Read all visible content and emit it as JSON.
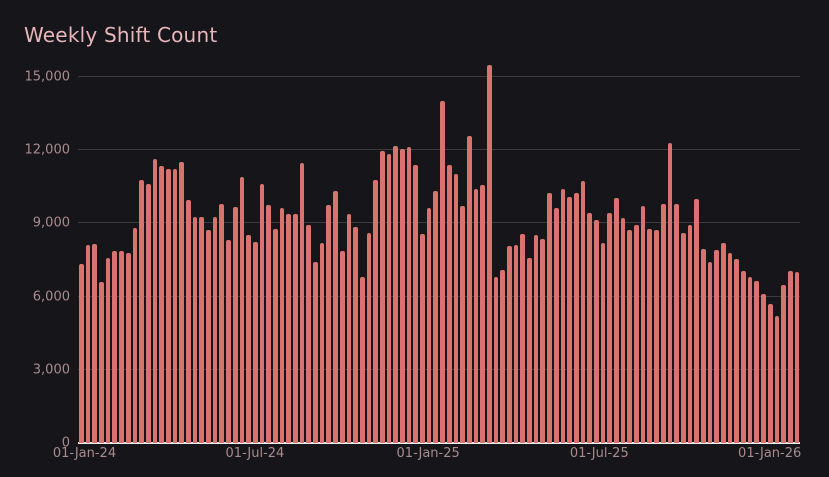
{
  "page": {
    "background": "#16161a"
  },
  "chart_data": {
    "type": "bar",
    "title": "Weekly Shift Count",
    "xlabel": "",
    "ylabel": "",
    "x_start": "01-Jan-24",
    "x_interval": "weekly",
    "x_end": "19-Jan-26",
    "ylim": [
      0,
      15000
    ],
    "grid": true,
    "legend": false,
    "values": [
      7350,
      8100,
      8150,
      6590,
      7590,
      7870,
      7850,
      7780,
      8800,
      10760,
      10620,
      11650,
      11370,
      11240,
      11240,
      11530,
      9970,
      9270,
      9280,
      8740,
      9280,
      9780,
      8310,
      9690,
      10910,
      8510,
      8230,
      10600,
      9740,
      8780,
      9630,
      9370,
      9400,
      11480,
      8920,
      7410,
      8190,
      9740,
      10320,
      7850,
      9400,
      8850,
      6800,
      8600,
      10770,
      11980,
      11840,
      12170,
      12070,
      12140,
      11390,
      8580,
      9630,
      10320,
      14030,
      11390,
      11010,
      9710,
      12580,
      10390,
      10590,
      15500,
      6820,
      7100,
      8060,
      8120,
      8580,
      7580,
      8540,
      8370,
      10250,
      9630,
      10430,
      10080,
      10250,
      10740,
      9420,
      9150,
      8190,
      9420,
      10060,
      9230,
      8740,
      8920,
      9710,
      8780,
      8740,
      9780,
      12280,
      9780,
      8600,
      8920,
      10010,
      7960,
      7410,
      7920,
      8190,
      7780,
      7550,
      7070,
      6820,
      6660,
      6110,
      5700,
      5220,
      6490,
      7070,
      7000
    ],
    "y_ticks": [
      {
        "label": "0",
        "value": 0
      },
      {
        "label": "3,000",
        "value": 3000
      },
      {
        "label": "6,000",
        "value": 6000
      },
      {
        "label": "9,000",
        "value": 9000
      },
      {
        "label": "12,000",
        "value": 12000
      },
      {
        "label": "15,000",
        "value": 15000
      }
    ],
    "x_ticks": [
      {
        "label": "01-Jan-24",
        "pos_pct": 0.9
      },
      {
        "label": "01-Jul-24",
        "pos_pct": 24.5
      },
      {
        "label": "01-Jan-25",
        "pos_pct": 48.5
      },
      {
        "label": "01-Jul-25",
        "pos_pct": 72.2
      },
      {
        "label": "01-Jan-26",
        "pos_pct": 95.8
      }
    ],
    "colors": {
      "bar": "#d8736f",
      "background": "#16161a",
      "gridline": "#3a3a40",
      "axis_label": "#a98a8d",
      "title": "#e7b5ba",
      "baseline": "#ededed"
    }
  }
}
